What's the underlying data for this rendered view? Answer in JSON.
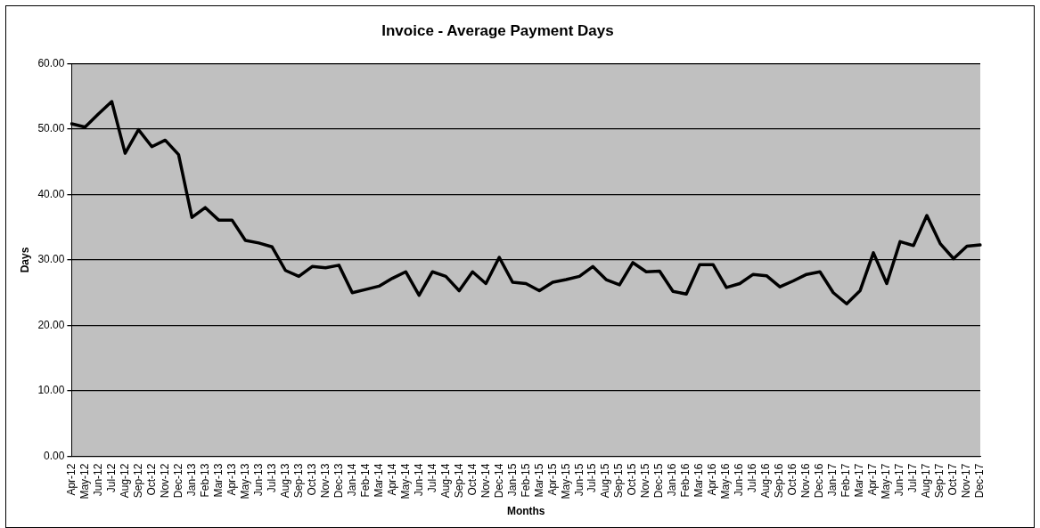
{
  "chart_data": {
    "type": "line",
    "title": "Invoice - Average Payment Days",
    "xlabel": "Months",
    "ylabel": "Days",
    "categories": [
      "Apr-12",
      "May-12",
      "Jun-12",
      "Jul-12",
      "Aug-12",
      "Sep-12",
      "Oct-12",
      "Nov-12",
      "Dec-12",
      "Jan-13",
      "Feb-13",
      "Mar-13",
      "Apr-13",
      "May-13",
      "Jun-13",
      "Jul-13",
      "Aug-13",
      "Sep-13",
      "Oct-13",
      "Nov-13",
      "Dec-13",
      "Jan-14",
      "Feb-14",
      "Mar-14",
      "Apr-14",
      "May-14",
      "Jun-14",
      "Jul-14",
      "Aug-14",
      "Sep-14",
      "Oct-14",
      "Nov-14",
      "Dec-14",
      "Jan-15",
      "Feb-15",
      "Mar-15",
      "Apr-15",
      "May-15",
      "Jun-15",
      "Jul-15",
      "Aug-15",
      "Sep-15",
      "Oct-15",
      "Nov-15",
      "Dec-15",
      "Jan-16",
      "Feb-16",
      "Mar-16",
      "Apr-16",
      "May-16",
      "Jun-16",
      "Jul-16",
      "Aug-16",
      "Sep-16",
      "Oct-16",
      "Nov-16",
      "Dec-16",
      "Jan-17",
      "Feb-17",
      "Mar-17",
      "Apr-17",
      "May-17",
      "Jun-17",
      "Jul-17",
      "Aug-17",
      "Sep-17",
      "Oct-17",
      "Nov-17",
      "Dec-17"
    ],
    "series": [
      {
        "color": "#000000",
        "values": [
          50.8,
          50.3,
          52.3,
          54.2,
          46.3,
          49.9,
          47.3,
          48.3,
          46.1,
          36.5,
          38.0,
          36.1,
          36.1,
          33.0,
          32.6,
          32.0,
          28.4,
          27.5,
          29.0,
          28.8,
          29.2,
          25.0,
          25.5,
          26.0,
          27.2,
          28.2,
          24.6,
          28.2,
          27.5,
          25.3,
          28.2,
          26.4,
          30.4,
          26.6,
          26.4,
          25.3,
          26.6,
          27.0,
          27.5,
          29.0,
          27.0,
          26.2,
          29.6,
          28.2,
          28.3,
          25.2,
          24.8,
          29.3,
          29.3,
          25.8,
          26.4,
          27.8,
          27.6,
          25.9,
          26.8,
          27.8,
          28.2,
          25.0,
          23.3,
          25.3,
          31.1,
          26.4,
          32.8,
          32.2,
          36.8,
          32.5,
          30.2,
          32.1,
          32.3
        ]
      }
    ],
    "ylim": [
      0,
      60
    ],
    "yticks": [
      {
        "value": 0,
        "label": "0.00"
      },
      {
        "value": 10,
        "label": "10.00"
      },
      {
        "value": 20,
        "label": "20.00"
      },
      {
        "value": 30,
        "label": "30.00"
      },
      {
        "value": 40,
        "label": "40.00"
      },
      {
        "value": 50,
        "label": "50.00"
      },
      {
        "value": 60,
        "label": "60.00"
      }
    ],
    "grid": "y",
    "legend": false,
    "marker": "none",
    "line_style": "solid"
  }
}
